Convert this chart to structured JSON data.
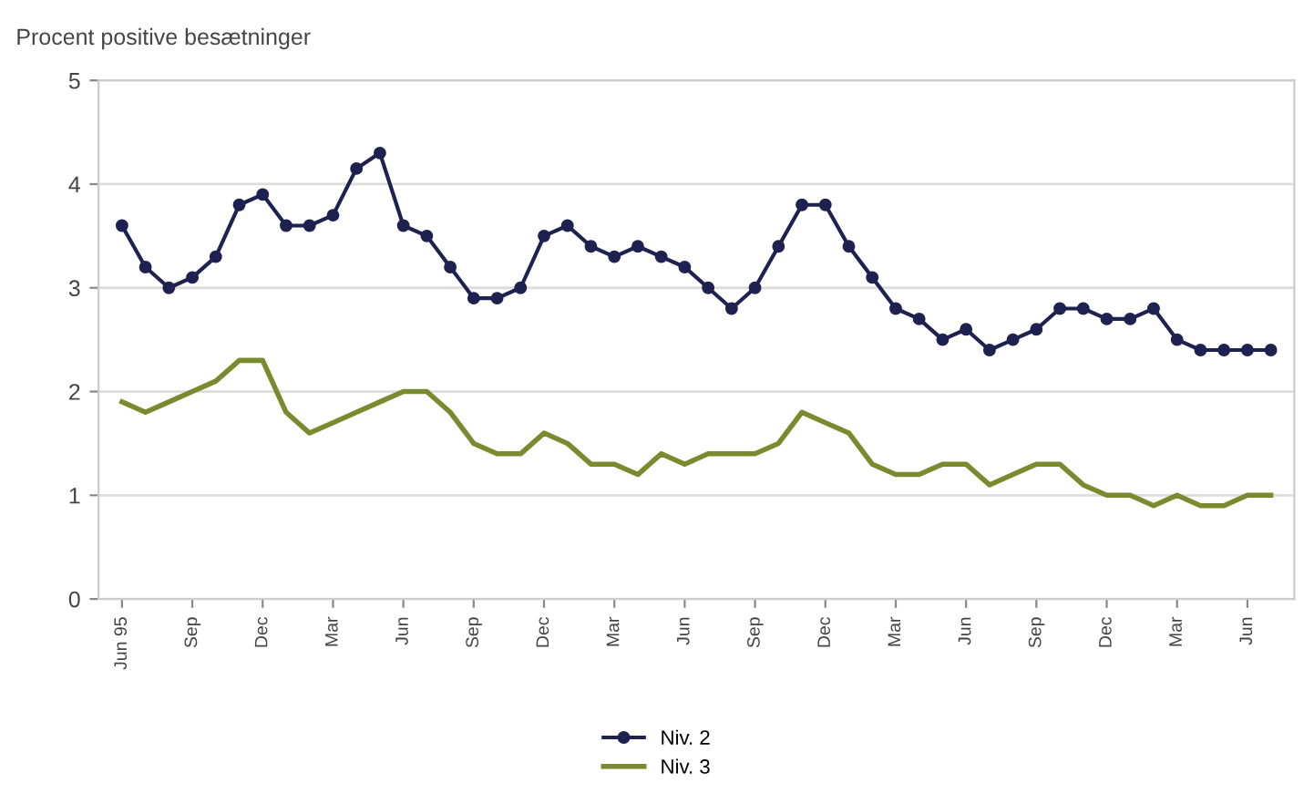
{
  "chart_data": {
    "type": "line",
    "title": "Procent positive besætninger",
    "categories": [
      "Jun 95",
      null,
      null,
      "Sep",
      null,
      null,
      "Dec",
      null,
      null,
      "Mar",
      null,
      null,
      "Jun",
      null,
      null,
      "Sep",
      null,
      null,
      "Dec",
      null,
      null,
      "Mar",
      null,
      null,
      "Jun",
      null,
      null,
      "Sep",
      null,
      null,
      "Dec",
      null,
      null,
      "Mar",
      null,
      null,
      "Jun",
      null,
      null,
      "Sep",
      null,
      null,
      "Dec",
      null,
      null,
      "Mar",
      null,
      null,
      "Jun",
      null
    ],
    "series": [
      {
        "name": "Niv. 2",
        "color": "#1f2150",
        "marker": "circle",
        "values": [
          3.6,
          3.2,
          3.0,
          3.1,
          3.3,
          3.8,
          3.9,
          3.6,
          3.6,
          3.7,
          4.15,
          4.3,
          3.6,
          3.5,
          3.2,
          2.9,
          2.9,
          3.0,
          3.5,
          3.6,
          3.4,
          3.3,
          3.4,
          3.3,
          3.2,
          3.0,
          2.8,
          3.0,
          3.4,
          3.8,
          3.8,
          3.4,
          3.1,
          2.8,
          2.7,
          2.5,
          2.6,
          2.4,
          2.5,
          2.6,
          2.8,
          2.8,
          2.7,
          2.7,
          2.8,
          2.5,
          2.4,
          2.4,
          2.4,
          2.4
        ]
      },
      {
        "name": "Niv. 3",
        "color": "#7a8a2e",
        "marker": "none",
        "values": [
          1.9,
          1.8,
          1.9,
          2.0,
          2.1,
          2.3,
          2.3,
          1.8,
          1.6,
          1.7,
          1.8,
          1.9,
          2.0,
          2.0,
          1.8,
          1.5,
          1.4,
          1.4,
          1.6,
          1.5,
          1.3,
          1.3,
          1.2,
          1.4,
          1.3,
          1.4,
          1.4,
          1.4,
          1.5,
          1.8,
          1.7,
          1.6,
          1.3,
          1.2,
          1.2,
          1.3,
          1.3,
          1.1,
          1.2,
          1.3,
          1.3,
          1.1,
          1.0,
          1.0,
          0.9,
          1.0,
          0.9,
          0.9,
          1.0,
          1.0
        ]
      }
    ],
    "ylim": [
      0,
      5
    ],
    "yticks": [
      0,
      1,
      2,
      3,
      4,
      5
    ],
    "grid": "y",
    "legend": "bottom",
    "line_style": "solid"
  }
}
